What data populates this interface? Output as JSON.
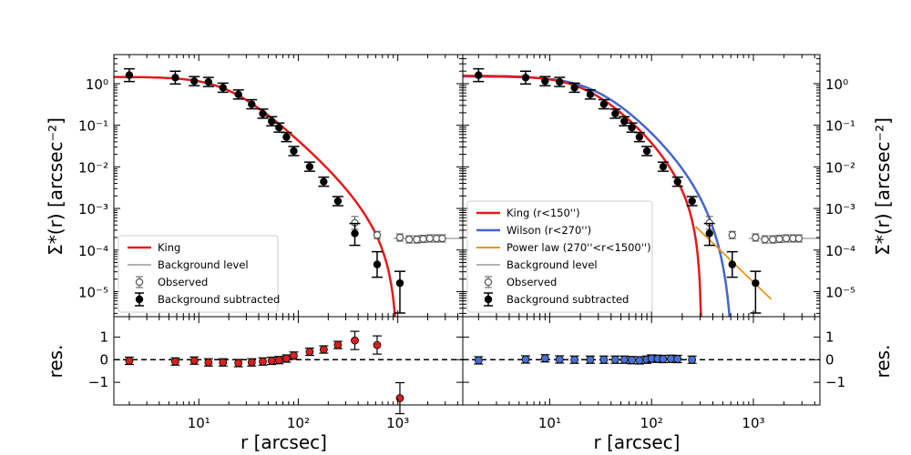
{
  "chart_data": [
    {
      "type": "scatter",
      "title": "",
      "xlabel": "r  [arcsec]",
      "ylabel": "Σ*(r) [arcsec⁻²]",
      "xscale": "log",
      "yscale": "log",
      "xlim": [
        1.4,
        4500
      ],
      "ylim": [
        2.5e-06,
        5
      ],
      "series": [
        {
          "name": "Background subtracted",
          "x": [
            2,
            5.8,
            9,
            12.5,
            17.5,
            25,
            34,
            44,
            54,
            64,
            76,
            90,
            130,
            180,
            250,
            370,
            620,
            1050
          ],
          "y": [
            1.6,
            1.4,
            1.15,
            1.1,
            0.8,
            0.55,
            0.32,
            0.19,
            0.125,
            0.088,
            0.052,
            0.024,
            0.0101,
            0.0044,
            0.0015,
            0.00025,
            4.5e-05,
            1.6e-05
          ]
        },
        {
          "name": "Observed",
          "x": [
            370,
            620,
            1050,
            1300,
            1550,
            1800,
            2100,
            2450,
            2800
          ],
          "y": [
            0.00045,
            0.00023,
            0.0002,
            0.00018,
            0.00018,
            0.000185,
            0.00019,
            0.00019,
            0.00019
          ]
        },
        {
          "name": "King",
          "type": "line"
        },
        {
          "name": "Background level",
          "y": 0.00019
        }
      ],
      "legend": {
        "position": "lower-left",
        "entries": [
          "King",
          "Background level",
          "Observed",
          "Background subtracted"
        ]
      },
      "residuals": {
        "ylabel": "res.",
        "ylim": [
          -2.0,
          1.9
        ],
        "x": [
          2,
          5.8,
          9,
          12.5,
          17.5,
          25,
          34,
          44,
          54,
          64,
          76,
          90,
          130,
          180,
          250,
          370,
          620,
          1050
        ],
        "y": [
          -0.05,
          -0.08,
          -0.04,
          -0.12,
          -0.12,
          -0.15,
          -0.12,
          -0.08,
          -0.05,
          -0.02,
          0.05,
          0.18,
          0.35,
          0.45,
          0.65,
          0.85,
          0.65,
          -1.7
        ]
      }
    },
    {
      "type": "scatter",
      "title": "",
      "xlabel": "r  [arcsec]",
      "ylabel": "Σ*(r) [arcsec⁻²]",
      "xscale": "log",
      "yscale": "log",
      "xlim": [
        1.4,
        4500
      ],
      "ylim": [
        2.5e-06,
        5
      ],
      "series": [
        {
          "name": "Background subtracted",
          "x": [
            2,
            5.8,
            9,
            12.5,
            17.5,
            25,
            34,
            44,
            54,
            64,
            76,
            90,
            130,
            180,
            250,
            370,
            620,
            1050
          ],
          "y": [
            1.6,
            1.4,
            1.15,
            1.1,
            0.8,
            0.55,
            0.32,
            0.19,
            0.125,
            0.088,
            0.052,
            0.024,
            0.0101,
            0.0044,
            0.0015,
            0.00025,
            4.5e-05,
            1.6e-05
          ]
        },
        {
          "name": "Observed",
          "x": [
            370,
            620,
            1050,
            1300,
            1550,
            1800,
            2100,
            2450,
            2800
          ],
          "y": [
            0.00045,
            0.00023,
            0.0002,
            0.00018,
            0.00018,
            0.000185,
            0.00019,
            0.00019,
            0.00019
          ]
        },
        {
          "name": "King (r<150'')",
          "type": "line"
        },
        {
          "name": "Wilson (r<270'')",
          "type": "line"
        },
        {
          "name": "Power law (270''<r<1500'')",
          "type": "line",
          "x": [
            270,
            1500
          ],
          "y": [
            0.00037,
            6.5e-06
          ]
        },
        {
          "name": "Background level",
          "y": 0.00019
        }
      ],
      "legend": {
        "position": "lower-left",
        "entries": [
          "King (r<150'')",
          "Wilson (r<270'')",
          "Power law (270''<r<1500'')",
          "Background level",
          "Observed",
          "Background subtracted"
        ]
      },
      "residuals": {
        "ylabel": "res.",
        "ylim": [
          -2.0,
          1.9
        ],
        "x": [
          2,
          5.8,
          9,
          12.5,
          17.5,
          25,
          34,
          44,
          54,
          64,
          76,
          90,
          100,
          115,
          130,
          155,
          180,
          250
        ],
        "y": [
          -0.03,
          0.01,
          0.06,
          0.01,
          0.0,
          0.0,
          0.0,
          0.0,
          0.0,
          -0.02,
          -0.03,
          0.0,
          0.05,
          0.04,
          0.03,
          0.04,
          0.03,
          0.0
        ]
      }
    }
  ],
  "ticks": {
    "x": [
      "10¹",
      "10²",
      "10³"
    ],
    "y_main": [
      "10⁰",
      "10⁻¹",
      "10⁻²",
      "10⁻³",
      "10⁻⁴",
      "10⁻⁵"
    ],
    "y_res": [
      "1",
      "0",
      "−1"
    ]
  },
  "colors": {
    "king": "#e31a1c",
    "wilson": "#4466cc",
    "powerlaw": "#e8961e",
    "background": "#999999",
    "data": "#000000",
    "observed": "#555555",
    "res_left": "#d62020",
    "res_right": "#4a6fd4"
  }
}
